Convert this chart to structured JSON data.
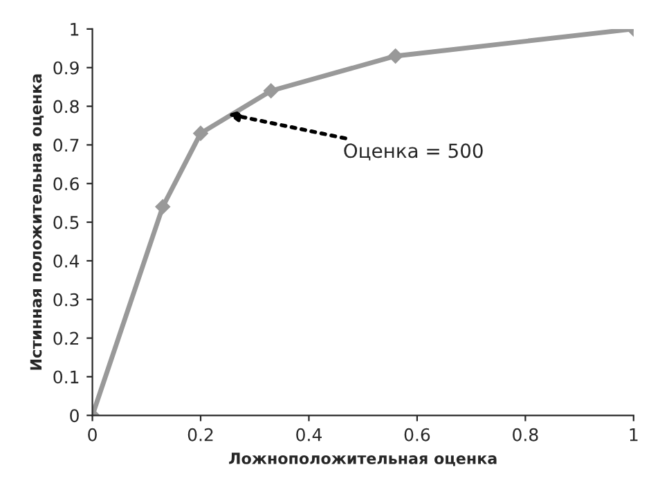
{
  "chart_data": {
    "type": "line",
    "xlabel": "Ложноположительная оценка",
    "ylabel": "Истинная положительная оценка",
    "x": [
      0,
      0.13,
      0.2,
      0.33,
      0.56,
      1
    ],
    "series": [
      {
        "color": "#999999",
        "values": [
          0,
          0.54,
          0.73,
          0.84,
          0.93,
          1
        ]
      }
    ],
    "marker": "diamond",
    "line_style": "solid",
    "grid": false,
    "legend": false,
    "xlim": [
      0,
      1
    ],
    "ylim": [
      0,
      1
    ],
    "xticks": [
      0,
      0.2,
      0.4,
      0.6,
      0.8,
      1
    ],
    "yticks": [
      0,
      0.1,
      0.2,
      0.3,
      0.4,
      0.5,
      0.6,
      0.7,
      0.8,
      0.9,
      1
    ],
    "annotations": [
      {
        "text": "Оценка = 500",
        "x": 0.25,
        "y": 0.78
      }
    ]
  }
}
